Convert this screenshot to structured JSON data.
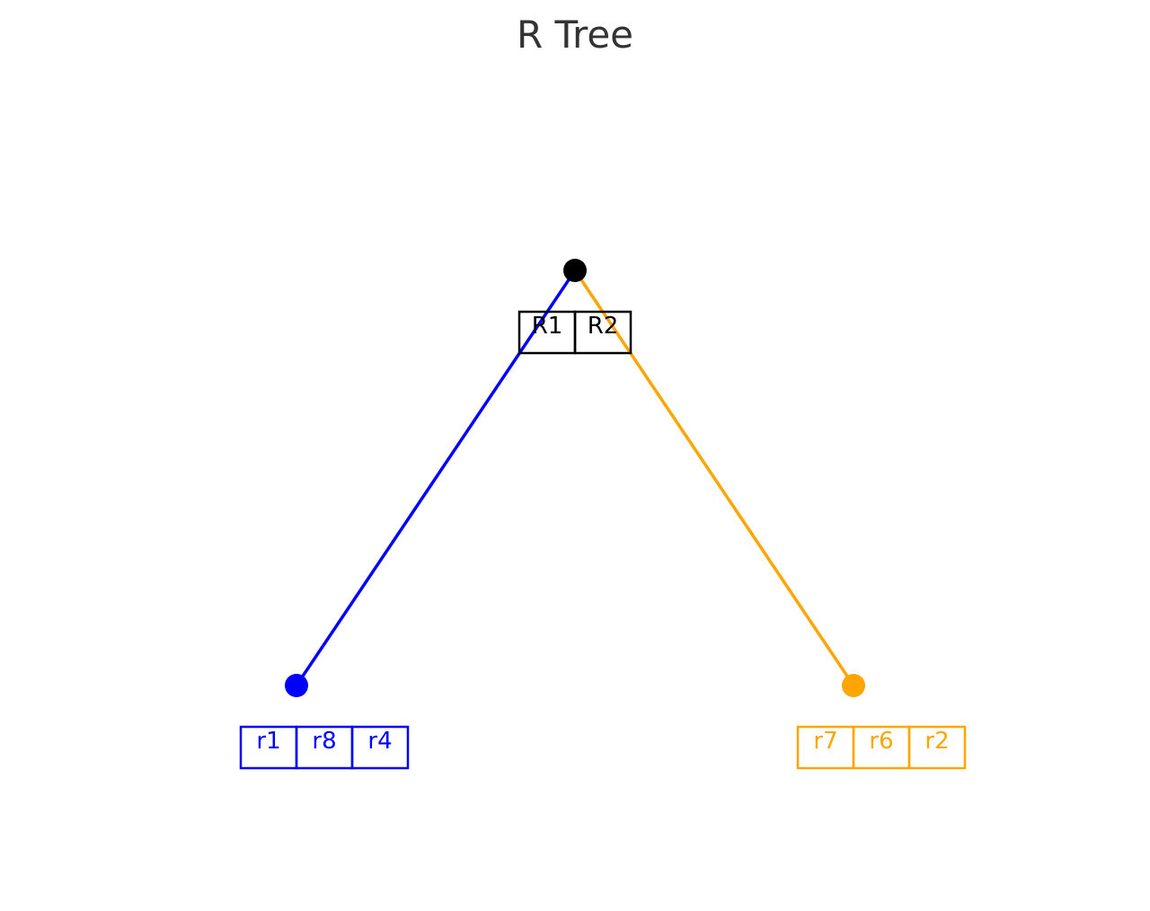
{
  "title": "R Tree",
  "colors": {
    "root": "#000000",
    "left": "#0000ff",
    "right": "#ffa500",
    "title": "#333333",
    "background": "#ffffff"
  },
  "tree": {
    "root": {
      "id": "root",
      "entries": [
        "R1",
        "R2"
      ],
      "color_key": "root"
    },
    "children": [
      {
        "id": "left",
        "entries": [
          "r1",
          "r8",
          "r4"
        ],
        "color_key": "left"
      },
      {
        "id": "right",
        "entries": [
          "r7",
          "r6",
          "r2"
        ],
        "color_key": "right"
      }
    ]
  }
}
